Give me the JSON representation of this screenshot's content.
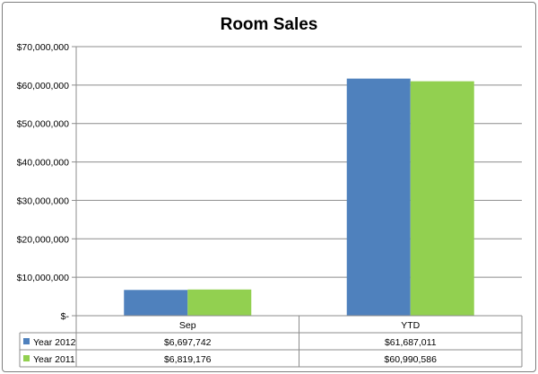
{
  "chart_data": {
    "type": "bar",
    "title": "Room Sales",
    "categories": [
      "Sep",
      "YTD"
    ],
    "series": [
      {
        "name": "Year 2012",
        "color": "#4f81bd",
        "values": [
          6697742,
          61687011
        ],
        "value_labels": [
          "$6,697,742",
          "$61,687,011"
        ]
      },
      {
        "name": "Year 2011",
        "color": "#92d050",
        "values": [
          6819176,
          60990586
        ],
        "value_labels": [
          "$6,819,176",
          "$60,990,586"
        ]
      }
    ],
    "ylim": [
      0,
      70000000
    ],
    "yticks": [
      0,
      10000000,
      20000000,
      30000000,
      40000000,
      50000000,
      60000000,
      70000000
    ],
    "ytick_labels": [
      "$-",
      "$10,000,000",
      "$20,000,000",
      "$30,000,000",
      "$40,000,000",
      "$50,000,000",
      "$60,000,000",
      "$70,000,000"
    ],
    "grid": true,
    "legend": "data-table"
  }
}
